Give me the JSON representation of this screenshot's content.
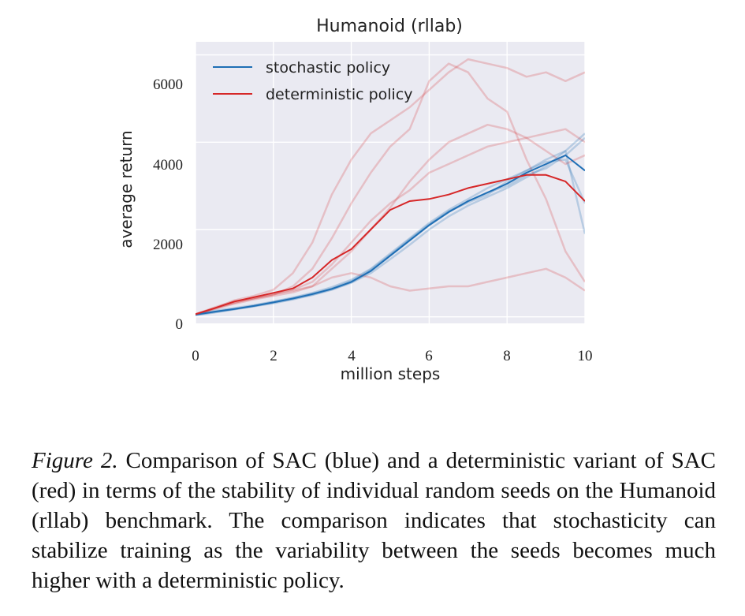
{
  "figure": {
    "caption_label": "Figure 2.",
    "caption_text": "Comparison of SAC (blue) and a deterministic variant of SAC (red) in terms of the stability of individual random seeds on the Humanoid (rllab) benchmark. The comparison indicates that stochasticity can stabilize training as the variability between the seeds becomes much higher with a deterministic policy."
  },
  "chart_data": {
    "type": "line",
    "title": "Humanoid (rllab)",
    "xlabel": "million steps",
    "ylabel": "average return",
    "xlim": [
      0,
      10
    ],
    "ylim": [
      -150,
      6300
    ],
    "x_ticks": [
      0,
      2,
      4,
      6,
      8,
      10
    ],
    "y_ticks": [
      0,
      2000,
      4000,
      6000
    ],
    "x_tick_labels": [
      "0",
      "2",
      "4",
      "6",
      "8",
      "10"
    ],
    "y_tick_labels": [
      "0",
      "2000",
      "4000",
      "6000"
    ],
    "grid": true,
    "legend_position": "top-left",
    "colors": {
      "stochastic": "#1f6fb5",
      "deterministic": "#d62728",
      "background": "#eaeaf2",
      "grid": "#ffffff"
    },
    "x": [
      0,
      0.5,
      1,
      1.5,
      2,
      2.5,
      3,
      3.5,
      4,
      4.5,
      5,
      5.5,
      6,
      6.5,
      7,
      7.5,
      8,
      8.5,
      9,
      9.5,
      10
    ],
    "series": [
      {
        "name": "stochastic policy",
        "kind": "mean",
        "color": "#1f6fb5",
        "values": [
          50,
          120,
          180,
          250,
          330,
          420,
          520,
          640,
          800,
          1050,
          1400,
          1750,
          2100,
          2400,
          2650,
          2850,
          3050,
          3300,
          3500,
          3700,
          3350
        ]
      },
      {
        "name": "deterministic policy",
        "kind": "mean",
        "color": "#d62728",
        "values": [
          60,
          200,
          350,
          450,
          550,
          650,
          900,
          1300,
          1550,
          2000,
          2450,
          2650,
          2700,
          2800,
          2950,
          3050,
          3150,
          3250,
          3250,
          3100,
          2650
        ]
      },
      {
        "kind": "seed",
        "policy": "stochastic",
        "values": [
          40,
          100,
          170,
          240,
          310,
          400,
          500,
          620,
          780,
          1000,
          1320,
          1650,
          2000,
          2300,
          2550,
          2750,
          2950,
          3200,
          3450,
          3800,
          4200
        ]
      },
      {
        "kind": "seed",
        "policy": "stochastic",
        "values": [
          60,
          140,
          200,
          270,
          350,
          440,
          550,
          680,
          850,
          1100,
          1450,
          1800,
          2150,
          2450,
          2700,
          2950,
          3150,
          3350,
          3550,
          3600,
          2600
        ]
      },
      {
        "kind": "seed",
        "policy": "stochastic",
        "values": [
          50,
          120,
          175,
          245,
          325,
          410,
          510,
          630,
          790,
          1050,
          1400,
          1750,
          2100,
          2400,
          2650,
          2850,
          3000,
          3250,
          3400,
          3700,
          4100
        ]
      },
      {
        "kind": "seed",
        "policy": "stochastic",
        "values": [
          45,
          110,
          180,
          255,
          340,
          430,
          530,
          650,
          820,
          1080,
          1420,
          1780,
          2120,
          2420,
          2620,
          2800,
          3100,
          3350,
          3600,
          3800,
          1900
        ]
      },
      {
        "kind": "seed",
        "policy": "deterministic",
        "values": [
          60,
          200,
          380,
          480,
          620,
          1000,
          1700,
          2800,
          3600,
          4200,
          4500,
          4800,
          5200,
          5600,
          5900,
          5800,
          5700,
          5500,
          5600,
          5400,
          5600
        ]
      },
      {
        "kind": "seed",
        "policy": "deterministic",
        "values": [
          60,
          220,
          360,
          420,
          500,
          700,
          1100,
          1800,
          2600,
          3300,
          3900,
          4300,
          5400,
          5800,
          5600,
          5000,
          4700,
          3600,
          2700,
          1500,
          800
        ]
      },
      {
        "kind": "seed",
        "policy": "deterministic",
        "values": [
          60,
          190,
          330,
          430,
          520,
          600,
          700,
          900,
          1000,
          900,
          700,
          600,
          650,
          700,
          700,
          800,
          900,
          1000,
          1100,
          900,
          600
        ]
      },
      {
        "kind": "seed",
        "policy": "deterministic",
        "values": [
          60,
          180,
          300,
          400,
          480,
          560,
          700,
          1100,
          1500,
          2000,
          2500,
          3100,
          3600,
          4000,
          4200,
          4400,
          4300,
          4100,
          3800,
          3500,
          3700
        ]
      },
      {
        "kind": "seed",
        "policy": "deterministic",
        "values": [
          60,
          200,
          320,
          430,
          520,
          620,
          800,
          1200,
          1700,
          2200,
          2600,
          2900,
          3300,
          3500,
          3700,
          3900,
          4000,
          4100,
          4200,
          4300,
          4000
        ]
      }
    ]
  }
}
